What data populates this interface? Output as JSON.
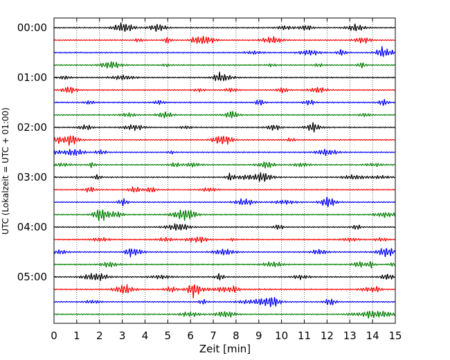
{
  "chart_data": {
    "type": "line",
    "title": "",
    "xlabel": "Zeit  [min]",
    "ylabel": "UTC (Lokalzeit = UTC + 01:00)",
    "xlim": [
      0,
      15
    ],
    "x_ticks": [
      "0",
      "1",
      "2",
      "3",
      "4",
      "5",
      "6",
      "7",
      "8",
      "9",
      "10",
      "11",
      "12",
      "13",
      "14",
      "15"
    ],
    "y_ticks": [
      "00:00",
      "01:00",
      "02:00",
      "03:00",
      "04:00",
      "05:00"
    ],
    "rows_per_hour": 4,
    "minutes_per_row": 15,
    "row_count": 24,
    "color_cycle": [
      "#000000",
      "#ff0000",
      "#0000ff",
      "#008000"
    ],
    "grid": "vertical dotted lines at each minute",
    "legend": "none",
    "notable_event": {
      "row_start": "05:15",
      "minute": 6.1,
      "amplitude": "large burst"
    }
  }
}
